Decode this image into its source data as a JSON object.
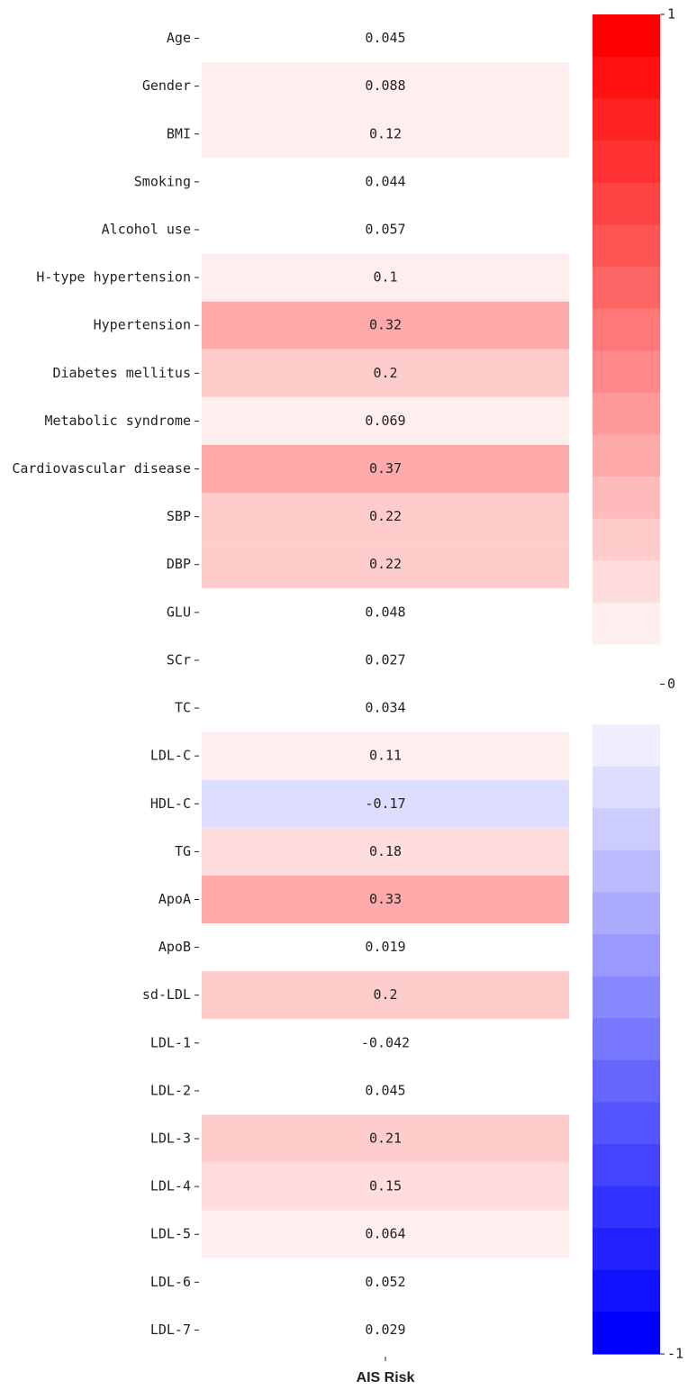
{
  "chart_data": {
    "type": "heatmap",
    "categories": [
      "Age",
      "Gender",
      "BMI",
      "Smoking",
      "Alcohol use",
      "H-type hypertension",
      "Hypertension",
      "Diabetes mellitus",
      "Metabolic syndrome",
      "Cardiovascular disease",
      "SBP",
      "DBP",
      "GLU",
      "SCr",
      "TC",
      "LDL-C",
      "HDL-C",
      "TG",
      "ApoA",
      "ApoB",
      "sd-LDL",
      "LDL-1",
      "LDL-2",
      "LDL-3",
      "LDL-4",
      "LDL-5",
      "LDL-6",
      "LDL-7"
    ],
    "series": [
      {
        "name": "AIS Risk",
        "values": [
          0.045,
          0.088,
          0.12,
          0.044,
          0.057,
          0.1,
          0.32,
          0.2,
          0.069,
          0.37,
          0.22,
          0.22,
          0.048,
          0.027,
          0.034,
          0.11,
          -0.17,
          0.18,
          0.33,
          0.019,
          0.2,
          -0.042,
          0.045,
          0.21,
          0.15,
          0.064,
          0.052,
          0.029
        ]
      }
    ],
    "colorbar": {
      "lim": [
        -1,
        1
      ],
      "ticks": [
        1,
        0,
        -1
      ],
      "levels": 15,
      "low_color": "#0000ff",
      "high_color": "#ff0000"
    }
  }
}
